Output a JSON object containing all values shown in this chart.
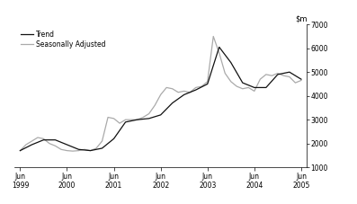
{
  "ylim": [
    1000,
    7000
  ],
  "yticks": [
    1000,
    2000,
    3000,
    4000,
    5000,
    6000,
    7000
  ],
  "legend_entries": [
    "Trend",
    "Seasonally Adjusted"
  ],
  "trend_color": "#111111",
  "seasonal_color": "#aaaaaa",
  "background_color": "#ffffff",
  "x_tick_labels": [
    "Jun\n1999",
    "Jun\n2000",
    "Jun\n2001",
    "Jun\n2002",
    "Jun\n2003",
    "Jun\n2004",
    "Jun\n2005"
  ],
  "x_tick_positions": [
    0,
    4,
    8,
    12,
    16,
    20,
    24
  ],
  "trend_x": [
    0,
    1,
    2,
    3,
    4,
    5,
    6,
    7,
    8,
    9,
    10,
    11,
    12,
    13,
    14,
    15,
    16,
    17,
    18,
    19,
    20,
    21,
    22,
    23,
    24
  ],
  "trend_y": [
    1700,
    1950,
    2150,
    2150,
    1950,
    1750,
    1700,
    1800,
    2200,
    2900,
    3000,
    3050,
    3200,
    3700,
    4050,
    4250,
    4500,
    6050,
    5400,
    4550,
    4350,
    4350,
    4900,
    5000,
    4700
  ],
  "seasonal_x": [
    0,
    0.5,
    1,
    1.5,
    2,
    2.5,
    3,
    3.5,
    4,
    4.5,
    5,
    5.5,
    6,
    6.5,
    7,
    7.5,
    8,
    8.5,
    9,
    9.5,
    10,
    10.5,
    11,
    11.5,
    12,
    12.5,
    13,
    13.5,
    14,
    14.5,
    15,
    15.5,
    16,
    16.5,
    17,
    17.5,
    18,
    18.5,
    19,
    19.5,
    20,
    20.5,
    21,
    21.5,
    22,
    22.5,
    23,
    23.5,
    24
  ],
  "seasonal_y": [
    1700,
    1950,
    2100,
    2250,
    2200,
    2000,
    1900,
    1750,
    1700,
    1680,
    1700,
    1750,
    1700,
    1800,
    2100,
    3100,
    3050,
    2850,
    3000,
    3000,
    3000,
    3100,
    3250,
    3600,
    4050,
    4350,
    4300,
    4150,
    4200,
    4150,
    4350,
    4400,
    4600,
    6500,
    5800,
    4950,
    4600,
    4400,
    4300,
    4350,
    4200,
    4700,
    4900,
    4850,
    4950,
    4850,
    4800,
    4550,
    4650
  ]
}
